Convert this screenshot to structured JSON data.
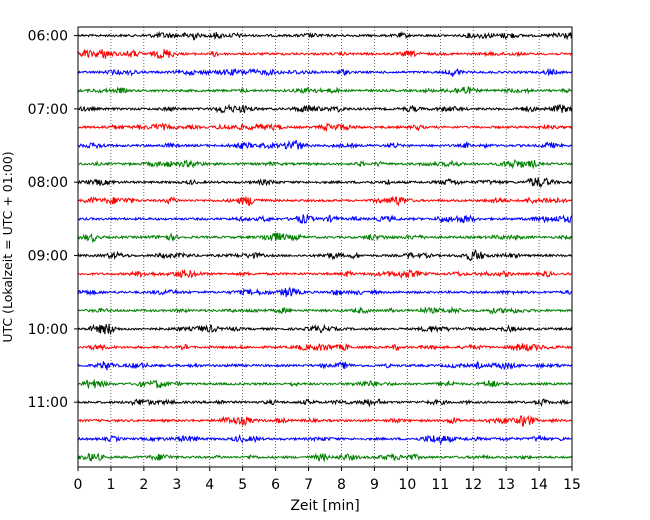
{
  "chart_data": {
    "type": "line",
    "title": "",
    "xlabel": "Zeit  [min]",
    "ylabel": "UTC (Lokalzeit = UTC + 01:00)",
    "xlim": [
      0,
      15
    ],
    "x_ticks": [
      0,
      1,
      2,
      3,
      4,
      5,
      6,
      7,
      8,
      9,
      10,
      11,
      12,
      13,
      14,
      15
    ],
    "y_ticks": [
      "06:00",
      "07:00",
      "08:00",
      "09:00",
      "10:00",
      "11:00"
    ],
    "traces": [
      {
        "start": "06:00",
        "color": "#000000"
      },
      {
        "start": "06:15",
        "color": "#ff0000"
      },
      {
        "start": "06:30",
        "color": "#0000ff"
      },
      {
        "start": "06:45",
        "color": "#008000"
      },
      {
        "start": "07:00",
        "color": "#000000"
      },
      {
        "start": "07:15",
        "color": "#ff0000"
      },
      {
        "start": "07:30",
        "color": "#0000ff"
      },
      {
        "start": "07:45",
        "color": "#008000"
      },
      {
        "start": "08:00",
        "color": "#000000"
      },
      {
        "start": "08:15",
        "color": "#ff0000"
      },
      {
        "start": "08:30",
        "color": "#0000ff"
      },
      {
        "start": "08:45",
        "color": "#008000"
      },
      {
        "start": "09:00",
        "color": "#000000"
      },
      {
        "start": "09:15",
        "color": "#ff0000"
      },
      {
        "start": "09:30",
        "color": "#0000ff"
      },
      {
        "start": "09:45",
        "color": "#008000"
      },
      {
        "start": "10:00",
        "color": "#000000"
      },
      {
        "start": "10:15",
        "color": "#ff0000"
      },
      {
        "start": "10:30",
        "color": "#0000ff"
      },
      {
        "start": "10:45",
        "color": "#008000"
      },
      {
        "start": "11:00",
        "color": "#000000"
      },
      {
        "start": "11:15",
        "color": "#ff0000"
      },
      {
        "start": "11:30",
        "color": "#0000ff"
      },
      {
        "start": "11:45",
        "color": "#008000"
      }
    ],
    "grid": "vertical-dotted",
    "legend": "none"
  }
}
